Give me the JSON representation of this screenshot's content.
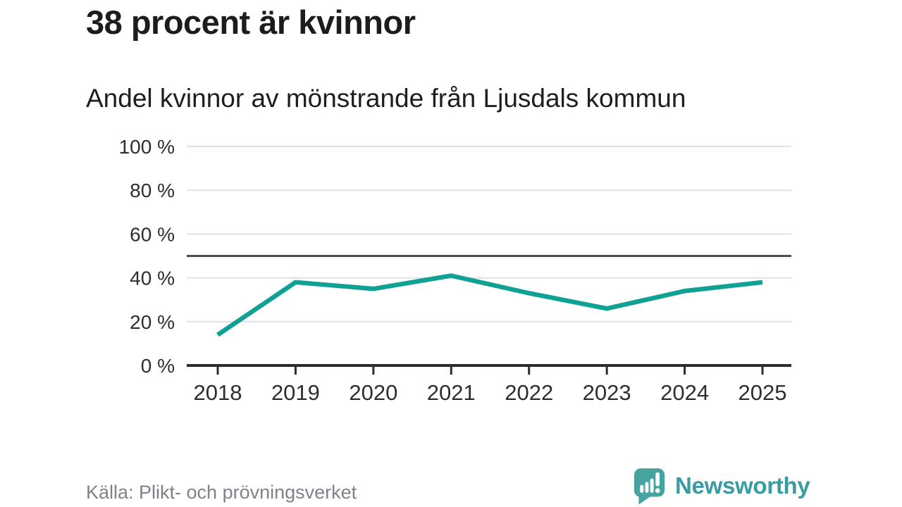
{
  "title": "38 procent är kvinnor",
  "subtitle": "Andel kvinnor av mönstrande från Ljusdals kommun",
  "source": "Källa: Plikt- och prövningsverket",
  "logo": {
    "text": "Newsworthy",
    "icon": "bar-chart-speech-bubble-icon"
  },
  "colors": {
    "line": "#10a195",
    "reference_line": "#4c4c4c",
    "grid": "#e1e1e1",
    "axis": "#2d2d2d",
    "tick_label": "#2e2e2e",
    "title_text": "#1c1c1a",
    "source_text": "#81818b",
    "brand_icon": "#47a3a0",
    "brand_text": "#399ca0"
  },
  "chart_data": {
    "type": "line",
    "title": "38 procent är kvinnor",
    "subtitle": "Andel kvinnor av mönstrande från Ljusdals kommun",
    "x": [
      2018,
      2019,
      2020,
      2021,
      2022,
      2023,
      2024,
      2025
    ],
    "series": [
      {
        "name": "Andel kvinnor av mönstrande från Ljusdals kommun",
        "values": [
          14,
          38,
          35,
          41,
          33,
          26,
          34,
          38
        ]
      }
    ],
    "unit": "%",
    "ylim": [
      0,
      100
    ],
    "yticks": [
      0,
      20,
      40,
      60,
      80,
      100
    ],
    "ytick_suffix": " %",
    "reference_line": 50,
    "grid": true,
    "legend": false,
    "xlabel": "",
    "ylabel": ""
  }
}
